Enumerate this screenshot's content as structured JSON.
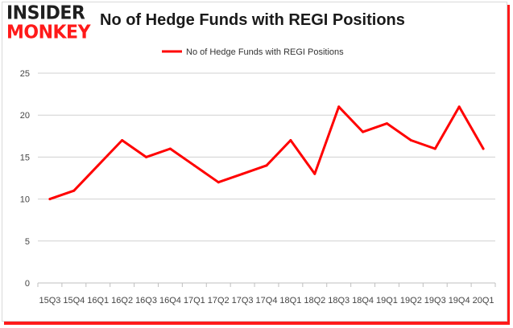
{
  "logo": {
    "line1": "INSIDER",
    "line2": "MONKEY"
  },
  "colors": {
    "series": "#ff0000",
    "grid": "#d0d0d0",
    "logo_accent": "#ff1a1a"
  },
  "chart_data": {
    "type": "line",
    "title": "No of Hedge Funds with REGI Positions",
    "xlabel": "",
    "ylabel": "",
    "ylim": [
      0,
      25
    ],
    "yticks": [
      0,
      5,
      10,
      15,
      20,
      25
    ],
    "grid": true,
    "legend": "top-center",
    "categories": [
      "15Q3",
      "15Q4",
      "16Q1",
      "16Q2",
      "16Q3",
      "16Q4",
      "17Q1",
      "17Q2",
      "17Q3",
      "17Q4",
      "18Q1",
      "18Q2",
      "18Q3",
      "18Q4",
      "19Q1",
      "19Q2",
      "19Q3",
      "19Q4",
      "20Q1"
    ],
    "series": [
      {
        "name": "No of Hedge Funds with REGI  Positions",
        "values": [
          10,
          11,
          14,
          17,
          15,
          16,
          14,
          12,
          13,
          14,
          17,
          13,
          21,
          18,
          19,
          17,
          16,
          21,
          16
        ]
      }
    ]
  }
}
